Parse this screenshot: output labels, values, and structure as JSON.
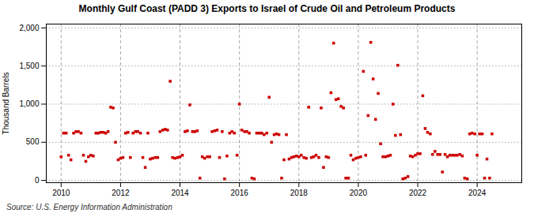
{
  "chart_data": {
    "type": "scatter",
    "title": "Monthly Gulf Coast (PADD 3) Exports to Israel of Crude Oil and Petroleum Products",
    "ylabel": "Thousand Barrels",
    "source": "Source: U.S. Energy Information Administration",
    "color": "#cc0000",
    "marker": "square",
    "grid": true,
    "xlim": [
      2009.5,
      2025.5
    ],
    "xticks": [
      2010,
      2012,
      2014,
      2016,
      2018,
      2020,
      2022,
      2024
    ],
    "ylim": [
      -30,
      2050
    ],
    "yticks": [
      0,
      500,
      {
        "value": 1000,
        "label": "1,000"
      },
      {
        "value": 1500,
        "label": "1,500"
      },
      {
        "value": 2000,
        "label": "2,000"
      }
    ],
    "x": [
      2010.0,
      2010.08,
      2010.17,
      2010.25,
      2010.33,
      2010.42,
      2010.5,
      2010.58,
      2010.67,
      2010.75,
      2010.83,
      2010.92,
      2011.0,
      2011.08,
      2011.17,
      2011.25,
      2011.33,
      2011.42,
      2011.5,
      2011.58,
      2011.67,
      2011.75,
      2011.83,
      2011.92,
      2012.0,
      2012.08,
      2012.17,
      2012.25,
      2012.33,
      2012.42,
      2012.5,
      2012.58,
      2012.67,
      2012.75,
      2012.83,
      2012.92,
      2013.0,
      2013.08,
      2013.17,
      2013.25,
      2013.33,
      2013.42,
      2013.5,
      2013.58,
      2013.67,
      2013.75,
      2013.83,
      2013.92,
      2014.0,
      2014.08,
      2014.17,
      2014.25,
      2014.33,
      2014.42,
      2014.5,
      2014.58,
      2014.67,
      2014.75,
      2014.83,
      2014.92,
      2015.0,
      2015.08,
      2015.17,
      2015.25,
      2015.33,
      2015.42,
      2015.5,
      2015.58,
      2015.67,
      2015.75,
      2015.83,
      2015.92,
      2016.0,
      2016.08,
      2016.17,
      2016.25,
      2016.33,
      2016.42,
      2016.5,
      2016.58,
      2016.67,
      2016.75,
      2016.83,
      2016.92,
      2017.0,
      2017.08,
      2017.17,
      2017.25,
      2017.33,
      2017.42,
      2017.5,
      2017.58,
      2017.67,
      2017.75,
      2017.83,
      2017.92,
      2018.0,
      2018.08,
      2018.17,
      2018.25,
      2018.33,
      2018.42,
      2018.5,
      2018.58,
      2018.67,
      2018.75,
      2018.83,
      2018.92,
      2019.0,
      2019.08,
      2019.17,
      2019.25,
      2019.33,
      2019.42,
      2019.5,
      2019.58,
      2019.67,
      2019.75,
      2019.83,
      2019.92,
      2020.0,
      2020.08,
      2020.17,
      2020.25,
      2020.33,
      2020.42,
      2020.5,
      2020.58,
      2020.67,
      2020.75,
      2020.83,
      2020.92,
      2021.0,
      2021.08,
      2021.17,
      2021.25,
      2021.33,
      2021.42,
      2021.5,
      2021.58,
      2021.67,
      2021.75,
      2021.83,
      2021.92,
      2022.0,
      2022.08,
      2022.17,
      2022.25,
      2022.33,
      2022.42,
      2022.5,
      2022.58,
      2022.67,
      2022.75,
      2022.83,
      2022.92,
      2023.0,
      2023.08,
      2023.17,
      2023.25,
      2023.33,
      2023.42,
      2023.5,
      2023.58,
      2023.67,
      2023.75,
      2023.83,
      2023.92,
      2024.0,
      2024.08,
      2024.17,
      2024.25,
      2024.33,
      2024.42,
      2024.5
    ],
    "values": [
      310,
      620,
      620,
      330,
      270,
      620,
      640,
      640,
      620,
      330,
      250,
      310,
      330,
      320,
      620,
      620,
      630,
      630,
      620,
      640,
      960,
      950,
      500,
      270,
      290,
      300,
      620,
      630,
      300,
      620,
      640,
      640,
      620,
      300,
      170,
      620,
      280,
      290,
      300,
      300,
      640,
      660,
      670,
      660,
      1300,
      300,
      290,
      300,
      310,
      330,
      640,
      650,
      990,
      640,
      640,
      650,
      30,
      310,
      290,
      310,
      310,
      640,
      650,
      660,
      300,
      640,
      20,
      320,
      620,
      640,
      620,
      330,
      1000,
      660,
      640,
      640,
      620,
      30,
      20,
      620,
      620,
      620,
      600,
      620,
      1090,
      500,
      600,
      610,
      600,
      30,
      270,
      600,
      280,
      300,
      310,
      320,
      310,
      330,
      300,
      290,
      960,
      300,
      310,
      330,
      300,
      950,
      170,
      310,
      300,
      1150,
      1800,
      1060,
      1070,
      970,
      950,
      30,
      30,
      330,
      270,
      290,
      300,
      310,
      1430,
      330,
      850,
      1810,
      1330,
      800,
      1140,
      480,
      310,
      310,
      320,
      330,
      1000,
      590,
      1510,
      600,
      20,
      30,
      50,
      320,
      310,
      330,
      350,
      350,
      1110,
      680,
      630,
      610,
      340,
      380,
      340,
      340,
      110,
      340,
      310,
      330,
      330,
      330,
      330,
      340,
      320,
      30,
      20,
      610,
      620,
      610,
      330,
      610,
      610,
      30,
      280,
      30,
      610
    ]
  }
}
